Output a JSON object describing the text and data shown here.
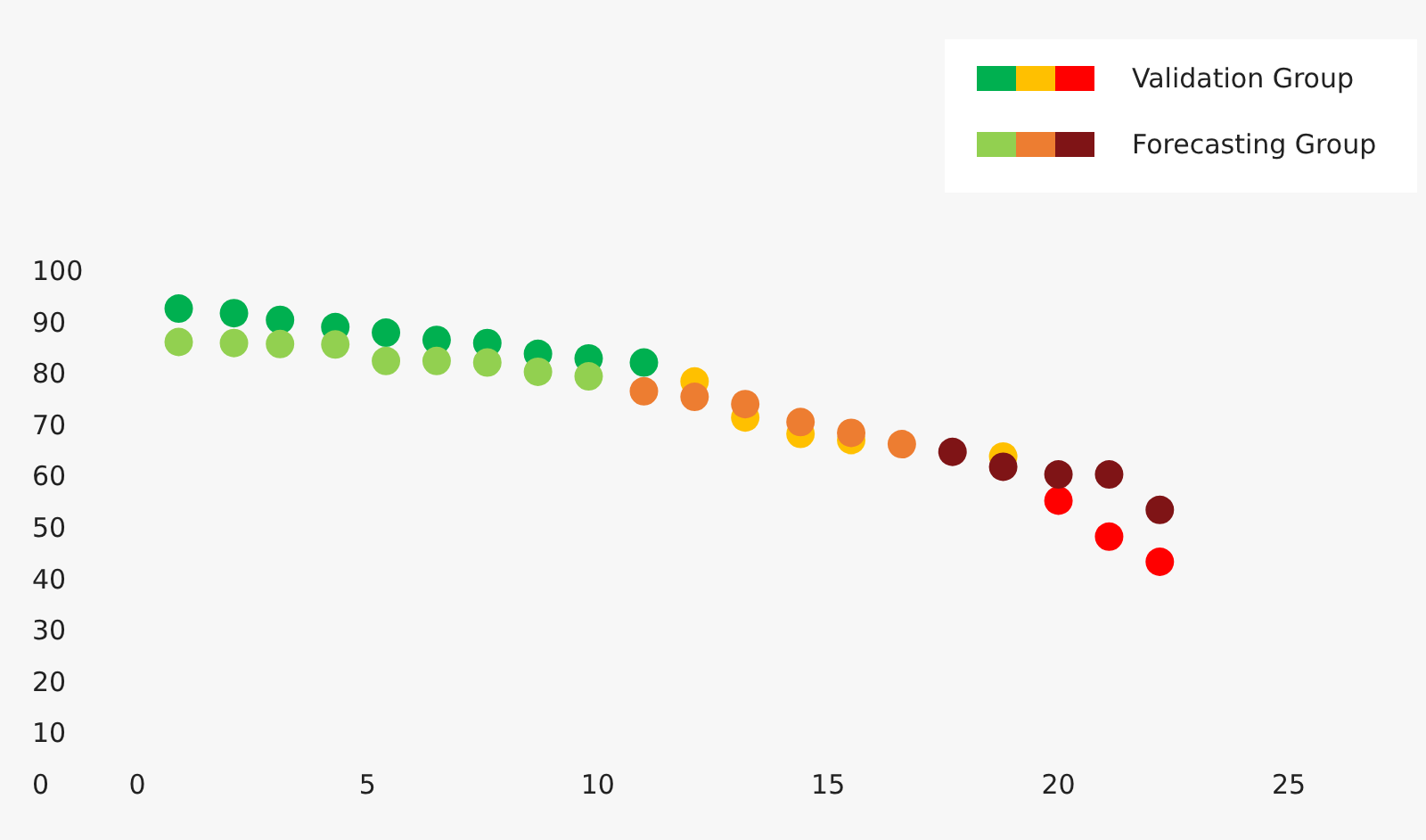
{
  "chart_data": {
    "type": "scatter",
    "x": [
      0.9,
      2.1,
      3.1,
      4.3,
      5.4,
      6.5,
      7.6,
      8.7,
      9.8,
      11.0,
      12.1,
      13.2,
      14.4,
      15.5,
      16.6,
      17.7,
      18.8,
      20.0,
      21.1,
      22.2
    ],
    "series": [
      {
        "name": "Validation Group",
        "colors": [
          "#00b050",
          "#00b050",
          "#00b050",
          "#00b050",
          "#00b050",
          "#00b050",
          "#00b050",
          "#00b050",
          "#00b050",
          "#00b050",
          "#ffc000",
          "#ffc000",
          "#ffc000",
          "#ffc000",
          "#ffc000",
          "#ffc000",
          "#ffc000",
          "#ff0000",
          "#ff0000",
          "#ff0000"
        ],
        "values": [
          92.7,
          91.8,
          90.5,
          89.1,
          88.0,
          86.6,
          86.0,
          83.9,
          83.0,
          82.2,
          78.5,
          71.5,
          68.3,
          67.1,
          null,
          null,
          63.9,
          55.3,
          48.3,
          43.4
        ]
      },
      {
        "name": "Forecasting Group",
        "colors": [
          "#92d050",
          "#92d050",
          "#92d050",
          "#92d050",
          "#92d050",
          "#92d050",
          "#92d050",
          "#92d050",
          "#92d050",
          "#ed7d31",
          "#ed7d31",
          "#ed7d31",
          "#ed7d31",
          "#ed7d31",
          "#ed7d31",
          "#7f1416",
          "#7f1416",
          "#7f1416",
          "#7f1416",
          "#7f1416"
        ],
        "values": [
          86.2,
          86.0,
          85.8,
          85.7,
          82.5,
          82.5,
          82.2,
          80.4,
          79.5,
          76.6,
          75.5,
          74.1,
          70.6,
          68.5,
          66.3,
          64.8,
          61.9,
          60.4,
          60.4,
          53.5
        ]
      }
    ],
    "xlim": [
      0,
      25
    ],
    "xticks": [
      0,
      5,
      10,
      15,
      20,
      25
    ],
    "ylim": [
      0,
      100
    ],
    "yticks": [
      0,
      10,
      20,
      30,
      40,
      50,
      60,
      70,
      80,
      90,
      100
    ],
    "grid": false,
    "legend": "top right",
    "marker": "circle"
  }
}
